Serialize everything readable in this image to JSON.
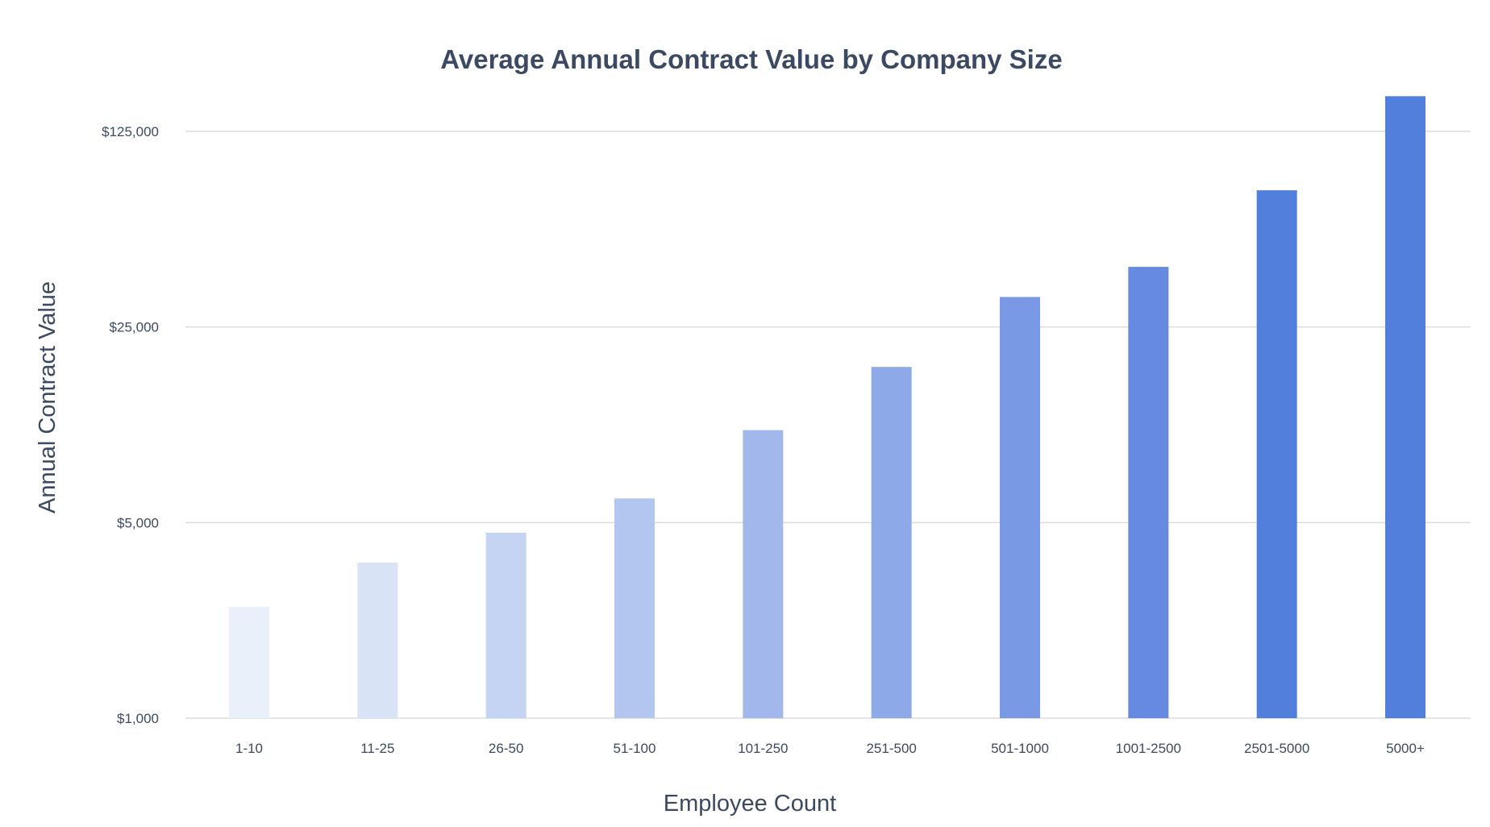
{
  "chart_data": {
    "type": "bar",
    "title": "Average Annual Contract Value by Company Size",
    "xlabel": "Employee Count",
    "ylabel": "Annual Contract Value",
    "yscale": "log",
    "ylim": [
      1000,
      167000
    ],
    "yticks": [
      1000,
      5000,
      25000,
      125000
    ],
    "ytick_labels": [
      "$1,000",
      "$5,000",
      "$25,000",
      "$125,000"
    ],
    "grid": true,
    "legend": "none",
    "categories": [
      "1-10",
      "11-25",
      "26-50",
      "51-100",
      "101-250",
      "251-500",
      "501-1000",
      "1001-2500",
      "2501-5000",
      "5000+"
    ],
    "values": [
      2500,
      3600,
      4600,
      6100,
      10700,
      18000,
      32000,
      41000,
      77000,
      167000
    ],
    "colors": [
      "#EAF0FA",
      "#D9E3F6",
      "#C5D4F3",
      "#B3C6F0",
      "#A2B8ED",
      "#8EA9E8",
      "#7A99E4",
      "#658ADF",
      "#527FDB",
      "#527FDB"
    ]
  }
}
